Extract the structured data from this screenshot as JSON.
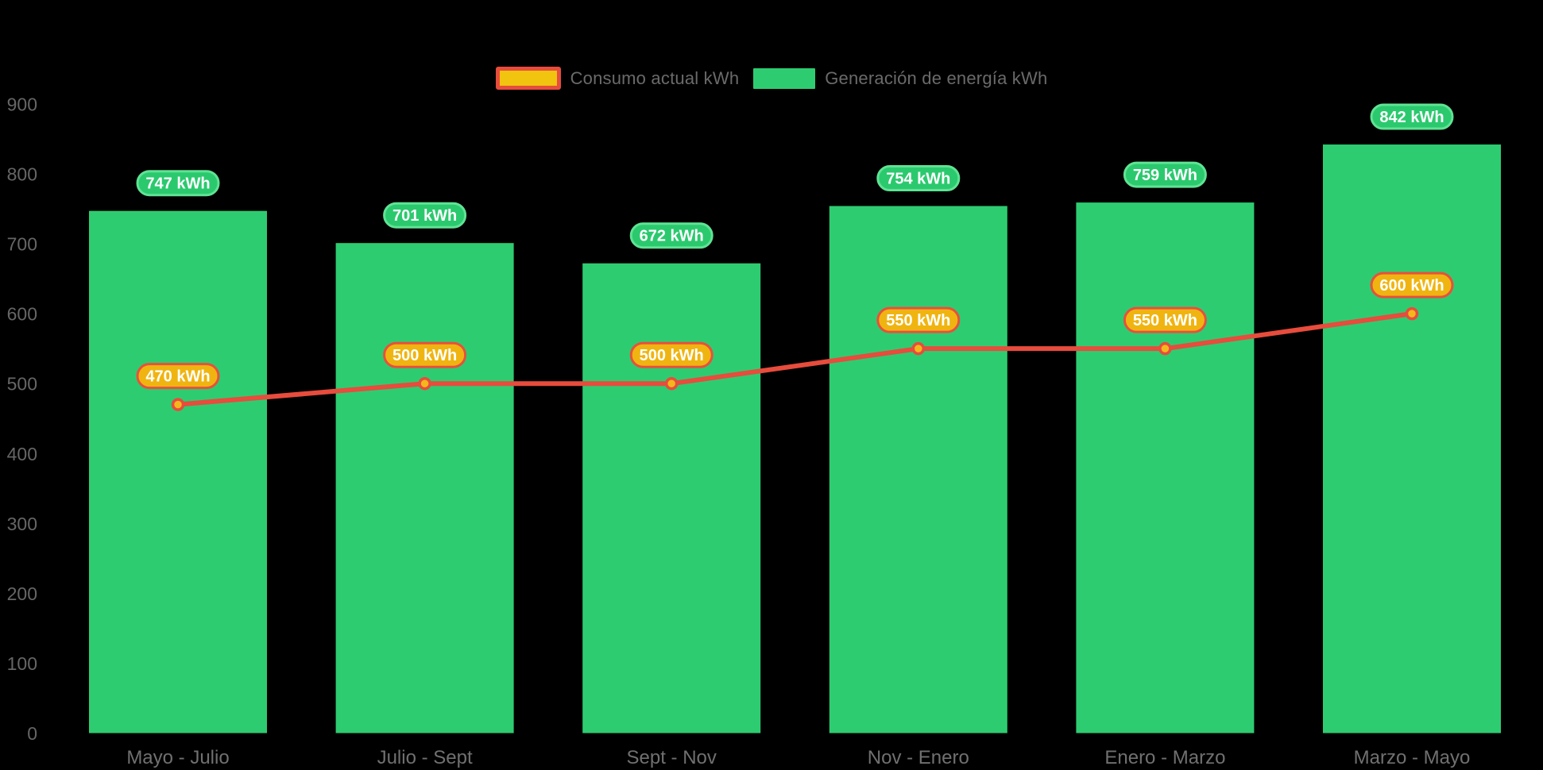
{
  "chart": {
    "background": "#000000",
    "unit": "kWh"
  },
  "legend": {
    "items": [
      {
        "label": "Consumo actual kWh",
        "series": "line"
      },
      {
        "label": "Generación de energía kWh",
        "series": "bar"
      }
    ]
  },
  "colors": {
    "bar_green": "#2ecc71",
    "badge_green_fill": "#2bc96e",
    "badge_green_border": "#5fe394",
    "line_red": "#e74c3c",
    "badge_orange_fill": "#f0b411",
    "badge_orange_border": "#e8503c",
    "marker_fill": "#f3b71c",
    "legend_yellow": "#f1c40f",
    "axis_text": "#666666",
    "x_label_text": "#707070",
    "legend_text": "#6a6a6a",
    "badge_text": "#ffffff"
  },
  "chart_data": {
    "type": "combo bar+line",
    "categories": [
      "Mayo - Julio",
      "Julio - Sept",
      "Sept - Nov",
      "Nov - Enero",
      "Enero - Marzo",
      "Marzo - Mayo"
    ],
    "series": [
      {
        "name": "Generación de energía kWh",
        "type": "bar",
        "color": "#2ecc71",
        "values": [
          747,
          701,
          672,
          754,
          759,
          842
        ]
      },
      {
        "name": "Consumo actual kWh",
        "type": "line",
        "color": "#e74c3c",
        "values": [
          470,
          500,
          500,
          550,
          550,
          600
        ]
      }
    ],
    "value_labels": {
      "bar": [
        "747 kWh",
        "701 kWh",
        "672 kWh",
        "754 kWh",
        "759 kWh",
        "842 kWh"
      ],
      "line": [
        "470 kWh",
        "500 kWh",
        "500 kWh",
        "550 kWh",
        "550 kWh",
        "600 kWh"
      ]
    },
    "y_axis": {
      "min": 0,
      "max": 900,
      "tick_step": 100,
      "ticks": [
        0,
        100,
        200,
        300,
        400,
        500,
        600,
        700,
        800,
        900
      ]
    },
    "grid": false,
    "legend_position": "top-center"
  }
}
